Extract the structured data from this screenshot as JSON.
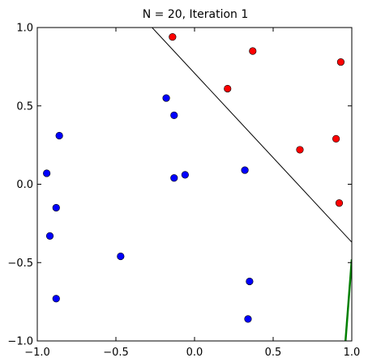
{
  "chart_data": {
    "type": "scatter",
    "title": "N = 20, Iteration 1",
    "xlabel": "",
    "ylabel": "",
    "xlim": [
      -1.0,
      1.0
    ],
    "ylim": [
      -1.0,
      1.0
    ],
    "x_ticks": [
      -1.0,
      -0.5,
      0.0,
      0.5,
      1.0
    ],
    "x_tick_labels": [
      "−1.0",
      "−0.5",
      "0.0",
      "0.5",
      "1.0"
    ],
    "y_ticks": [
      -1.0,
      -0.5,
      0.0,
      0.5,
      1.0
    ],
    "y_tick_labels": [
      "−1.0",
      "−0.5",
      "0.0",
      "0.5",
      "1.0"
    ],
    "grid": false,
    "legend": "none",
    "series": [
      {
        "color": "#ff0000",
        "points": [
          [
            -0.14,
            0.94
          ],
          [
            0.37,
            0.85
          ],
          [
            0.93,
            0.78
          ],
          [
            0.21,
            0.61
          ],
          [
            0.67,
            0.22
          ],
          [
            0.9,
            0.29
          ],
          [
            0.92,
            -0.12
          ]
        ]
      },
      {
        "color": "#0000ff",
        "points": [
          [
            -0.18,
            0.55
          ],
          [
            -0.13,
            0.44
          ],
          [
            -0.86,
            0.31
          ],
          [
            -0.94,
            0.07
          ],
          [
            -0.13,
            0.04
          ],
          [
            -0.06,
            0.06
          ],
          [
            0.32,
            0.09
          ],
          [
            -0.88,
            -0.15
          ],
          [
            -0.92,
            -0.33
          ],
          [
            -0.47,
            -0.46
          ],
          [
            0.35,
            -0.62
          ],
          [
            -0.88,
            -0.73
          ],
          [
            0.34,
            -0.86
          ]
        ]
      }
    ],
    "lines": [
      {
        "color": "#000000",
        "from": [
          -0.27,
          1.0
        ],
        "to": [
          1.0,
          -0.37
        ]
      },
      {
        "color": "#008000",
        "from": [
          0.96,
          -1.0
        ],
        "to": [
          1.0,
          -0.48
        ]
      }
    ]
  }
}
